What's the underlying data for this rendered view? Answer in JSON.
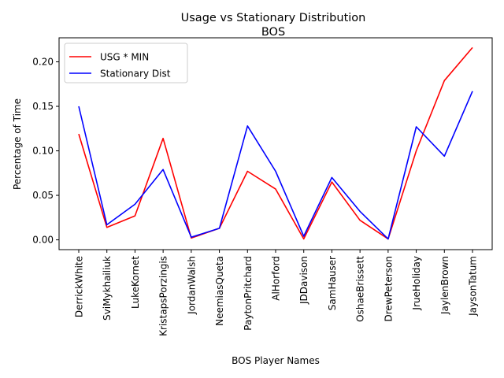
{
  "chart_data": {
    "type": "line",
    "title": "Usage vs Stationary Distribution",
    "subtitle": "BOS",
    "xlabel": "BOS Player Names",
    "ylabel": "Percentage of Time",
    "categories": [
      "DerrickWhite",
      "SviMykhailiuk",
      "LukeKornet",
      "KristapsPorzingis",
      "JordanWalsh",
      "NeemiasQueta",
      "PaytonPritchard",
      "AlHorford",
      "JDDavison",
      "SamHauser",
      "OshaeBrissett",
      "DrewPeterson",
      "JrueHoliday",
      "JaylenBrown",
      "JaysonTatum"
    ],
    "series": [
      {
        "name": "USG * MIN",
        "color": "#ff0000",
        "values": [
          0.119,
          0.014,
          0.027,
          0.114,
          0.002,
          0.013,
          0.077,
          0.057,
          0.001,
          0.065,
          0.022,
          0.001,
          0.1,
          0.179,
          0.216
        ]
      },
      {
        "name": "Stationary Dist",
        "color": "#0000ff",
        "values": [
          0.15,
          0.017,
          0.04,
          0.079,
          0.003,
          0.013,
          0.128,
          0.077,
          0.004,
          0.07,
          0.032,
          0.001,
          0.127,
          0.094,
          0.167
        ]
      }
    ],
    "ylim": [
      -0.011,
      0.227
    ],
    "yticks": [
      0.0,
      0.05,
      0.1,
      0.15,
      0.2
    ],
    "ytick_labels": [
      "0.00",
      "0.05",
      "0.10",
      "0.15",
      "0.20"
    ],
    "grid": false,
    "legend_position": "top-left"
  }
}
